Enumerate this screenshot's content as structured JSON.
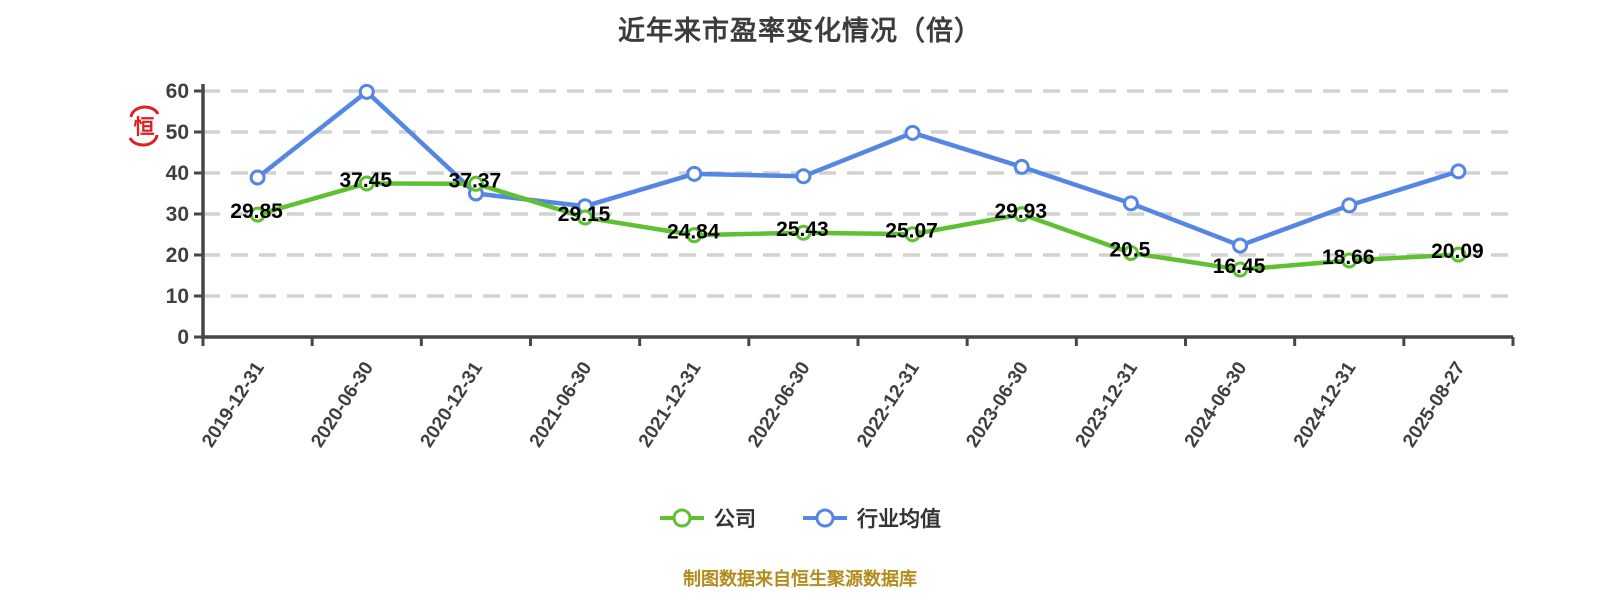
{
  "title": "近年来市盈率变化情况（倍）",
  "stamp": {
    "icon": "red-seal-icon",
    "char": "恒"
  },
  "footer": {
    "credit": "制图数据来自恒生聚源数据库"
  },
  "colors": {
    "company_green": "#5FC132",
    "industry_blue": "#5486E4",
    "axis": "#474747",
    "grid": "#D2D2D2",
    "tick_label": "#3F3F3F",
    "data_label": "#000000",
    "title": "#3C3C3C",
    "footer": "#B28C1E",
    "stamp": "#DF2020",
    "marker_fill": "#FFFFFF"
  },
  "chart_data": {
    "type": "line",
    "title": "近年来市盈率变化情况（倍）",
    "categories": [
      "2019-12-31",
      "2020-06-30",
      "2020-12-31",
      "2021-06-30",
      "2021-12-31",
      "2022-06-30",
      "2022-12-31",
      "2023-06-30",
      "2023-12-31",
      "2024-06-30",
      "2024-12-31",
      "2025-08-27"
    ],
    "series": [
      {
        "id": "company",
        "name": "公司",
        "color": "#5FC132",
        "values": [
          29.85,
          37.45,
          37.37,
          29.15,
          24.84,
          25.43,
          25.07,
          29.93,
          20.5,
          16.45,
          18.66,
          20.09
        ],
        "point_labels": true
      },
      {
        "id": "industry",
        "name": "行业均值",
        "color": "#5486E4",
        "values": [
          38.9,
          59.8,
          35.0,
          31.9,
          39.8,
          39.2,
          49.8,
          41.5,
          32.6,
          22.3,
          32.1,
          40.4
        ],
        "point_labels": false
      }
    ],
    "xlabel": "",
    "ylabel": "",
    "ylim": [
      0,
      60
    ],
    "yticks": [
      0,
      10,
      20,
      30,
      40,
      50,
      60
    ],
    "grid": "horizontal-dashed",
    "legend_position": "bottom",
    "x_label_rotation": -57
  }
}
